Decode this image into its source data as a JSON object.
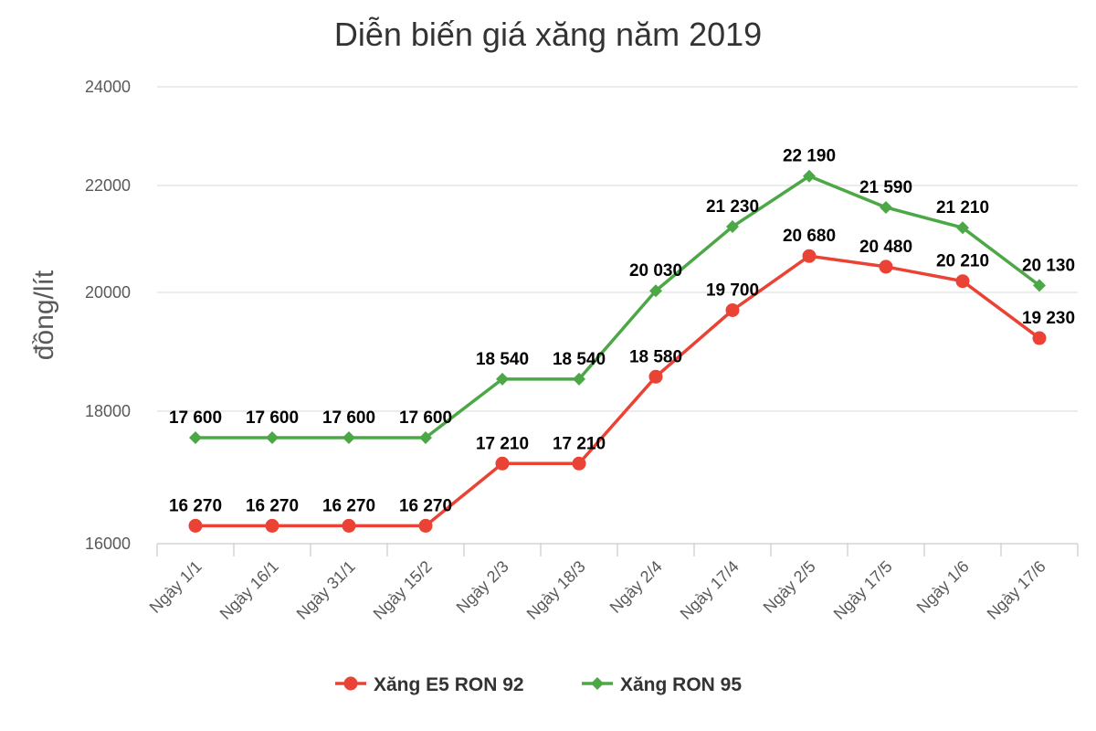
{
  "chart_data": {
    "type": "line",
    "title": "Diễn biến giá xăng năm 2019",
    "xlabel": "",
    "ylabel": "đồng/lít",
    "categories": [
      "Ngày 1/1",
      "Ngày 16/1",
      "Ngày 31/1",
      "Ngày 15/2",
      "Ngày 2/3",
      "Ngày 18/3",
      "Ngày 2/4",
      "Ngày 17/4",
      "Ngày 2/5",
      "Ngày 17/5",
      "Ngày 1/6",
      "Ngày 17/6"
    ],
    "yticks": [
      16000,
      18000,
      20000,
      22000,
      24000
    ],
    "ylim": [
      16000,
      24000
    ],
    "grid": true,
    "legend_position": "bottom",
    "series": [
      {
        "name": "Xăng E5 RON 92",
        "color": "#ea4335",
        "marker": "circle",
        "values": [
          16270,
          16270,
          16270,
          16270,
          17210,
          17210,
          18580,
          19700,
          20680,
          20480,
          20210,
          19230
        ],
        "labels": [
          "16 270",
          "16 270",
          "16 270",
          "16 270",
          "17 210",
          "17 210",
          "18 580",
          "19 700",
          "20 680",
          "20 480",
          "20 210",
          "19 230"
        ]
      },
      {
        "name": "Xăng RON 95",
        "color": "#4ca847",
        "marker": "diamond",
        "values": [
          17600,
          17600,
          17600,
          17600,
          18540,
          18540,
          20030,
          21230,
          22190,
          21590,
          21210,
          20130
        ],
        "labels": [
          "17 600",
          "17 600",
          "17 600",
          "17 600",
          "18 540",
          "18 540",
          "20 030",
          "21 230",
          "22 190",
          "21 590",
          "21 210",
          "20 130"
        ]
      }
    ]
  }
}
